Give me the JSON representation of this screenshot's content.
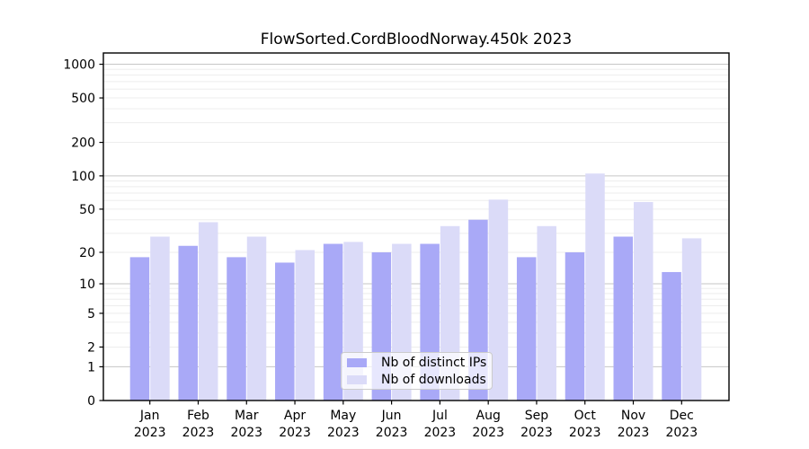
{
  "title": "FlowSorted.CordBloodNorway.450k 2023",
  "chart_data": {
    "type": "bar",
    "title": "FlowSorted.CordBloodNorway.450k 2023",
    "categories": [
      "Jan 2023",
      "Feb 2023",
      "Mar 2023",
      "Apr 2023",
      "May 2023",
      "Jun 2023",
      "Jul 2023",
      "Aug 2023",
      "Sep 2023",
      "Oct 2023",
      "Nov 2023",
      "Dec 2023"
    ],
    "series": [
      {
        "name": "Nb of distinct IPs",
        "color": "#a9a9f7",
        "values": [
          18,
          23,
          18,
          16,
          24,
          20,
          24,
          40,
          18,
          20,
          28,
          13
        ]
      },
      {
        "name": "Nb of downloads",
        "color": "#dbdbf8",
        "values": [
          28,
          38,
          28,
          21,
          25,
          24,
          35,
          61,
          35,
          105,
          58,
          27
        ]
      }
    ],
    "xlabel": "",
    "ylabel": "",
    "y_axis": {
      "scale": "log1p",
      "range": [
        0,
        1000
      ],
      "tick_labels": [
        0,
        1,
        2,
        5,
        10,
        20,
        50,
        100,
        200,
        500,
        1000
      ],
      "major_gridlines": [
        1,
        10,
        100,
        1000
      ]
    },
    "grid": true,
    "legend_position": "lower center"
  },
  "colors": {
    "background": "#ffffff",
    "axis": "#000000",
    "major_grid": "#c6c6c6",
    "minor_grid": "#ededed",
    "legend_border": "#cccccc",
    "bar_distinct_ips": "#a9a9f7",
    "bar_downloads": "#dbdbf8"
  }
}
